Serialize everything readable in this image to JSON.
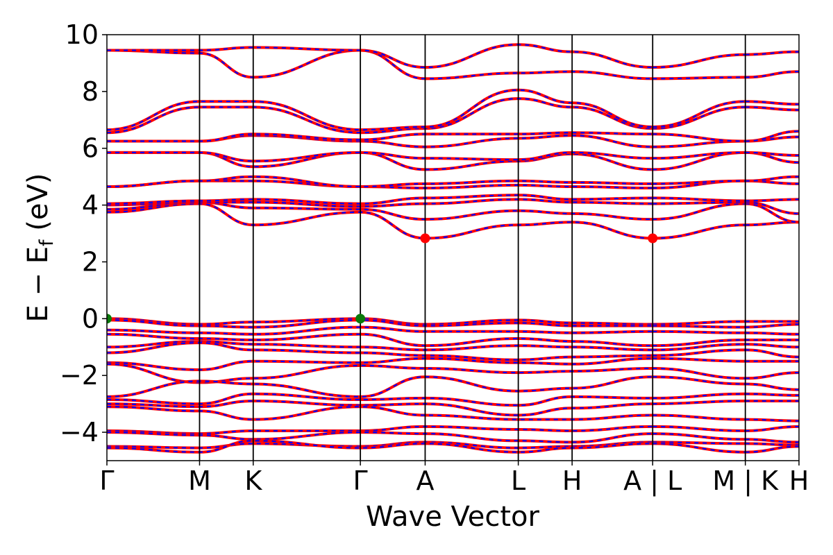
{
  "chart_data": {
    "type": "line",
    "title": "",
    "xlabel": "Wave Vector",
    "ylabel": {
      "main": "E − E",
      "subscript": "f",
      "unit": " (eV)"
    },
    "ylim": [
      -5,
      10
    ],
    "yticks": [
      -4,
      -2,
      0,
      2,
      4,
      6,
      8,
      10
    ],
    "ytick_labels": [
      "−4",
      "−2",
      "0",
      "2",
      "4",
      "6",
      "8",
      "10"
    ],
    "grid": false,
    "kpath": {
      "labels": [
        "Γ",
        "M",
        "K",
        "Γ",
        "A",
        "L",
        "H",
        "A | L",
        "M | K",
        "H"
      ],
      "positions": [
        0,
        0.575,
        0.908,
        1.573,
        1.975,
        2.553,
        2.887,
        3.387,
        3.962,
        4.295
      ],
      "breaks": [
        7,
        8
      ]
    },
    "line_style": {
      "primary_color": "#ff0000",
      "secondary_color": "#0000ff",
      "secondary_dash": "dashed"
    },
    "markers": [
      {
        "label": "VBM",
        "k": 0.0,
        "energy": 0.0,
        "color": "#0a7a0a"
      },
      {
        "label": "VBM",
        "k": 1.573,
        "energy": 0.0,
        "color": "#0a7a0a"
      },
      {
        "label": "CBM",
        "k": 1.975,
        "energy": 2.83,
        "color": "#ff0000"
      },
      {
        "label": "CBM",
        "k": 3.387,
        "energy": 2.83,
        "color": "#ff0000"
      }
    ],
    "bands": [
      {
        "name": "cb1",
        "energies": [
          3.75,
          4.05,
          3.3,
          3.75,
          2.83,
          3.3,
          3.4,
          2.83,
          3.3,
          3.4
        ]
      },
      {
        "name": "cb2",
        "energies": [
          3.85,
          4.1,
          3.9,
          3.85,
          3.5,
          3.8,
          3.7,
          3.5,
          4.05,
          3.4
        ]
      },
      {
        "name": "cb3",
        "energies": [
          4.0,
          4.1,
          4.1,
          3.95,
          4.05,
          4.2,
          4.1,
          4.05,
          4.1,
          3.7
        ]
      },
      {
        "name": "cb4",
        "energies": [
          4.05,
          4.15,
          4.2,
          4.05,
          4.25,
          4.35,
          4.2,
          4.25,
          4.15,
          4.2
        ]
      },
      {
        "name": "cb5",
        "energies": [
          4.65,
          4.85,
          4.85,
          4.65,
          4.6,
          4.7,
          4.65,
          4.6,
          4.85,
          4.75
        ]
      },
      {
        "name": "cb6",
        "energies": [
          4.65,
          4.85,
          5.0,
          4.65,
          4.75,
          4.85,
          4.8,
          4.75,
          4.85,
          5.0
        ]
      },
      {
        "name": "cb7",
        "energies": [
          5.85,
          5.85,
          5.35,
          5.85,
          5.25,
          5.55,
          5.8,
          5.25,
          5.85,
          5.5
        ]
      },
      {
        "name": "cb8",
        "energies": [
          5.85,
          5.85,
          5.55,
          5.85,
          5.65,
          5.6,
          5.85,
          5.65,
          5.85,
          5.75
        ]
      },
      {
        "name": "cb9",
        "energies": [
          6.25,
          6.25,
          6.45,
          6.25,
          6.05,
          6.35,
          6.45,
          6.05,
          6.25,
          6.4
        ]
      },
      {
        "name": "cb10",
        "energies": [
          6.25,
          6.25,
          6.5,
          6.3,
          6.5,
          6.5,
          6.55,
          6.5,
          6.25,
          6.6
        ]
      },
      {
        "name": "cb11",
        "energies": [
          6.55,
          7.45,
          7.45,
          6.55,
          6.7,
          7.75,
          7.45,
          6.7,
          7.45,
          7.35
        ]
      },
      {
        "name": "cb12",
        "energies": [
          6.65,
          7.65,
          7.65,
          6.65,
          6.75,
          8.05,
          7.6,
          6.75,
          7.65,
          7.55
        ]
      },
      {
        "name": "cb13",
        "energies": [
          9.45,
          9.35,
          8.5,
          9.45,
          8.45,
          8.65,
          8.7,
          8.45,
          8.5,
          8.7
        ]
      },
      {
        "name": "cb14",
        "energies": [
          9.45,
          9.45,
          9.55,
          9.45,
          8.85,
          9.65,
          9.4,
          8.85,
          9.3,
          9.4
        ]
      },
      {
        "name": "vb1",
        "energies": [
          0.0,
          -0.2,
          -0.12,
          0.0,
          -0.2,
          -0.05,
          -0.15,
          -0.2,
          -0.1,
          -0.1
        ]
      },
      {
        "name": "vb2",
        "energies": [
          -0.05,
          -0.25,
          -0.3,
          -0.05,
          -0.25,
          -0.15,
          -0.25,
          -0.25,
          -0.3,
          -0.2
        ]
      },
      {
        "name": "vb3",
        "energies": [
          -0.4,
          -0.5,
          -0.55,
          -0.3,
          -0.45,
          -0.45,
          -0.5,
          -0.45,
          -0.5,
          -0.55
        ]
      },
      {
        "name": "vb4",
        "energies": [
          -0.55,
          -0.7,
          -0.75,
          -0.55,
          -0.95,
          -0.7,
          -0.8,
          -0.95,
          -0.75,
          -0.75
        ]
      },
      {
        "name": "vb5",
        "energies": [
          -1.0,
          -0.8,
          -0.9,
          -1.0,
          -1.1,
          -0.95,
          -1.0,
          -1.1,
          -0.9,
          -1.0
        ]
      },
      {
        "name": "vb6",
        "energies": [
          -1.2,
          -0.85,
          -1.1,
          -1.2,
          -1.3,
          -1.45,
          -1.35,
          -1.3,
          -1.1,
          -1.35
        ]
      },
      {
        "name": "vb7",
        "energies": [
          -1.55,
          -1.8,
          -1.5,
          -1.55,
          -1.4,
          -1.55,
          -1.6,
          -1.4,
          -1.5,
          -1.5
        ]
      },
      {
        "name": "vb8",
        "energies": [
          -1.6,
          -2.25,
          -2.1,
          -1.65,
          -1.75,
          -1.9,
          -1.85,
          -1.75,
          -2.1,
          -1.9
        ]
      },
      {
        "name": "vb9",
        "energies": [
          -2.75,
          -2.2,
          -2.3,
          -2.75,
          -2.05,
          -2.55,
          -2.45,
          -2.05,
          -2.3,
          -2.5
        ]
      },
      {
        "name": "vb10",
        "energies": [
          -2.85,
          -3.0,
          -2.65,
          -2.85,
          -2.8,
          -3.05,
          -2.75,
          -2.8,
          -2.65,
          -2.7
        ]
      },
      {
        "name": "vb11",
        "energies": [
          -3.0,
          -3.1,
          -2.9,
          -3.05,
          -3.0,
          -3.4,
          -3.15,
          -3.0,
          -2.9,
          -2.9
        ]
      },
      {
        "name": "vb12",
        "energies": [
          -3.1,
          -3.25,
          -3.55,
          -3.1,
          -3.4,
          -3.55,
          -3.55,
          -3.4,
          -3.55,
          -3.6
        ]
      },
      {
        "name": "vb13",
        "energies": [
          -3.95,
          -4.05,
          -3.95,
          -3.95,
          -3.8,
          -3.9,
          -3.95,
          -3.8,
          -3.95,
          -3.8
        ]
      },
      {
        "name": "vb14",
        "energies": [
          -4.0,
          -4.1,
          -4.25,
          -4.0,
          -4.05,
          -4.3,
          -4.35,
          -4.05,
          -4.25,
          -4.35
        ]
      },
      {
        "name": "vb15",
        "energies": [
          -4.5,
          -4.55,
          -4.4,
          -4.5,
          -4.35,
          -4.55,
          -4.5,
          -4.35,
          -4.4,
          -4.45
        ]
      },
      {
        "name": "vb16",
        "energies": [
          -4.55,
          -4.7,
          -4.3,
          -4.55,
          -4.4,
          -4.7,
          -4.55,
          -4.4,
          -4.7,
          -4.5
        ]
      }
    ]
  }
}
